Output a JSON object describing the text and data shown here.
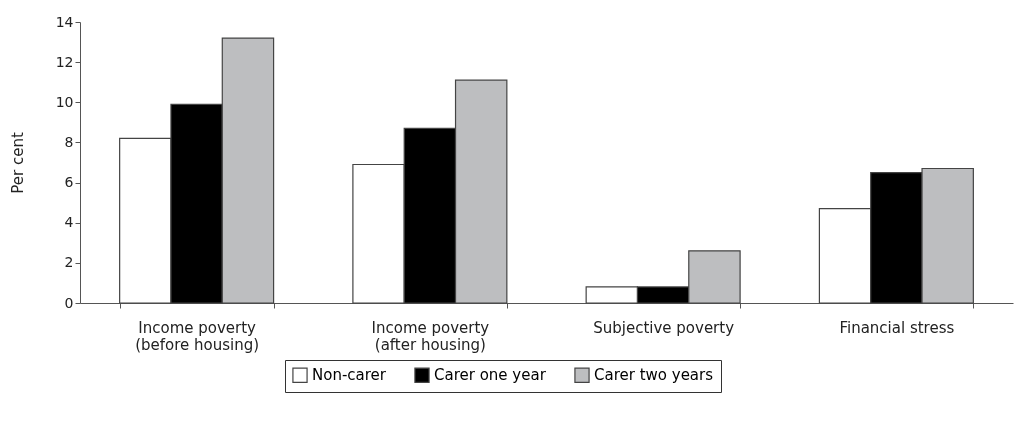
{
  "chart_data": {
    "type": "bar",
    "ylabel": "Per cent",
    "categories": [
      "Income poverty\n(before housing)",
      "Income poverty\n(after housing)",
      "Subjective poverty",
      "Financial stress"
    ],
    "series": [
      {
        "name": "Non-carer",
        "color": "#ffffff",
        "values": [
          8.2,
          6.9,
          0.8,
          4.7
        ]
      },
      {
        "name": "Carer one year",
        "color": "#000000",
        "values": [
          9.9,
          8.7,
          0.8,
          6.5
        ]
      },
      {
        "name": "Carer two years",
        "color": "#bdbec0",
        "values": [
          13.2,
          11.1,
          2.6,
          6.7
        ]
      }
    ],
    "ylim": [
      0,
      14
    ],
    "yticks": [
      0,
      2,
      4,
      6,
      8,
      10,
      12,
      14
    ],
    "grid": false,
    "legend": "bottom"
  }
}
